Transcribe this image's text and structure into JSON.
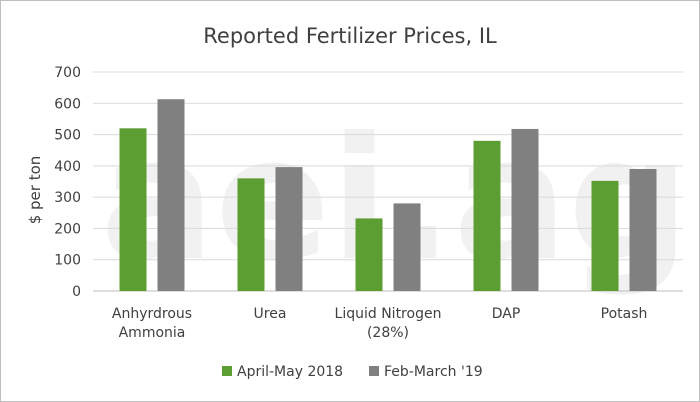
{
  "watermark": "aei.ag",
  "chart_data": {
    "type": "bar",
    "title": "Reported Fertilizer Prices, IL",
    "xlabel": "",
    "ylabel": "$ per ton",
    "ylim": [
      0,
      700
    ],
    "yticks": [
      0,
      100,
      200,
      300,
      400,
      500,
      600,
      700
    ],
    "grid": true,
    "legend_position": "bottom",
    "categories": [
      [
        "Anhyrdrous",
        "Ammonia"
      ],
      [
        "Urea"
      ],
      [
        "Liquid Nitrogen",
        "(28%)"
      ],
      [
        "DAP"
      ],
      [
        "Potash"
      ]
    ],
    "series": [
      {
        "name": "April-May 2018",
        "color": "#5c9e31",
        "values": [
          520,
          360,
          232,
          480,
          352
        ]
      },
      {
        "name": "Feb-March '19",
        "color": "#808080",
        "values": [
          613,
          396,
          280,
          518,
          390
        ]
      }
    ]
  }
}
